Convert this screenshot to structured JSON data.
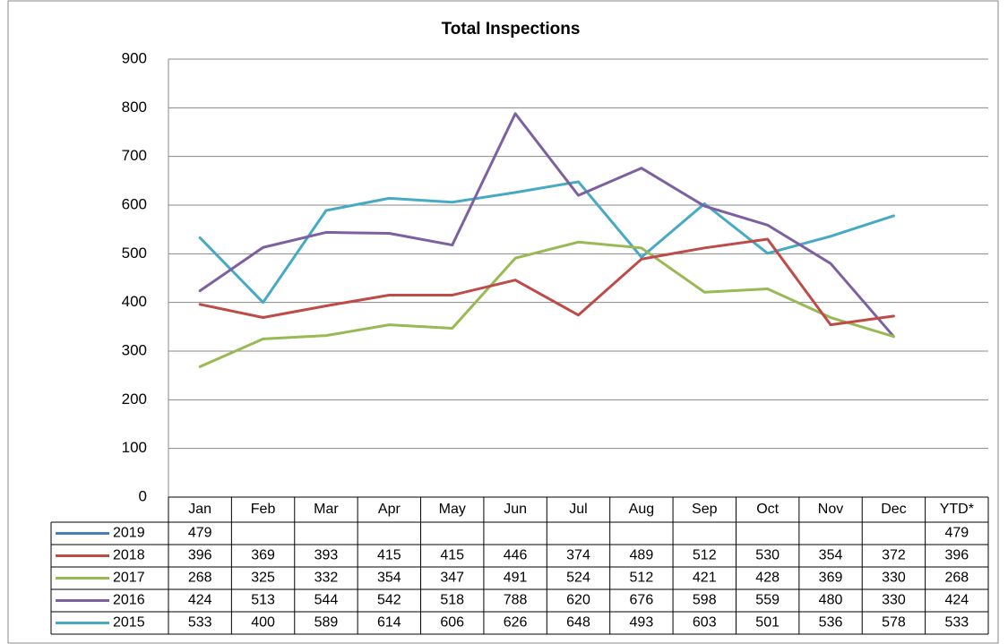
{
  "chart_data": {
    "type": "line",
    "title": "Total Inspections",
    "categories": [
      "Jan",
      "Feb",
      "Mar",
      "Apr",
      "May",
      "Jun",
      "Jul",
      "Aug",
      "Sep",
      "Oct",
      "Nov",
      "Dec"
    ],
    "ytd_label": "YTD*",
    "ylim": [
      0,
      900
    ],
    "yticks": [
      0,
      100,
      200,
      300,
      400,
      500,
      600,
      700,
      800,
      900
    ],
    "grid": true,
    "series": [
      {
        "name": "2019",
        "color": "#4a7ebb",
        "values": [
          479,
          null,
          null,
          null,
          null,
          null,
          null,
          null,
          null,
          null,
          null,
          null
        ],
        "ytd": 479
      },
      {
        "name": "2018",
        "color": "#be4b48",
        "values": [
          396,
          369,
          393,
          415,
          415,
          446,
          374,
          489,
          512,
          530,
          354,
          372
        ],
        "ytd": 396
      },
      {
        "name": "2017",
        "color": "#98b954",
        "values": [
          268,
          325,
          332,
          354,
          347,
          491,
          524,
          512,
          421,
          428,
          369,
          330
        ],
        "ytd": 268
      },
      {
        "name": "2016",
        "color": "#7d60a0",
        "values": [
          424,
          513,
          544,
          542,
          518,
          788,
          620,
          676,
          598,
          559,
          480,
          330
        ],
        "ytd": 424
      },
      {
        "name": "2015",
        "color": "#46aac5",
        "values": [
          533,
          400,
          589,
          614,
          606,
          626,
          648,
          493,
          603,
          501,
          536,
          578
        ],
        "ytd": 533
      }
    ]
  }
}
